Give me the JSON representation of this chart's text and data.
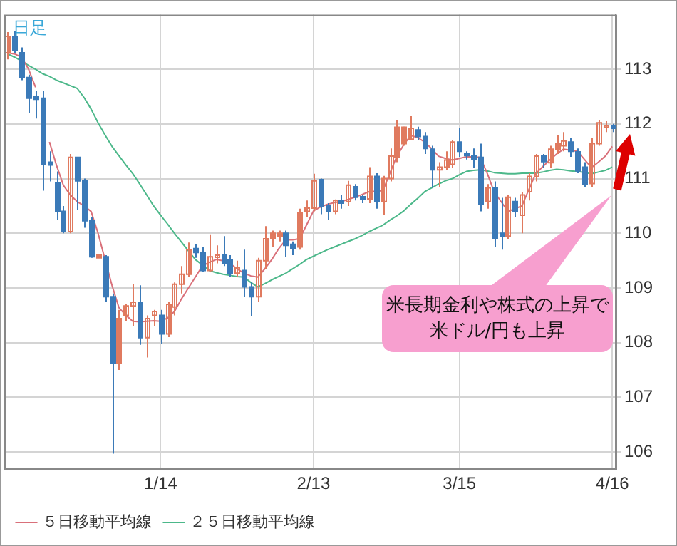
{
  "chart_data": {
    "type": "candlestick",
    "title": "日足",
    "categories": [
      null,
      null,
      null,
      null,
      null,
      null,
      null,
      null,
      null,
      null,
      null,
      null,
      null,
      null,
      null,
      null,
      null,
      null,
      null,
      null,
      null,
      null,
      "1/14",
      null,
      null,
      null,
      null,
      null,
      null,
      null,
      null,
      null,
      null,
      null,
      null,
      null,
      null,
      null,
      null,
      null,
      null,
      null,
      null,
      null,
      "2/13",
      null,
      null,
      null,
      null,
      null,
      null,
      null,
      null,
      null,
      null,
      null,
      null,
      null,
      null,
      null,
      null,
      null,
      null,
      null,
      null,
      "3/15",
      null,
      null,
      null,
      null,
      null,
      null,
      null,
      null,
      null,
      null,
      null,
      null,
      null,
      null,
      null,
      null,
      null,
      null,
      null,
      null,
      null,
      "4/16"
    ],
    "ohlc": [
      [
        113.3,
        113.68,
        113.18,
        113.6
      ],
      [
        113.6,
        113.7,
        113.3,
        113.35
      ],
      [
        113.3,
        113.4,
        112.8,
        112.85
      ],
      [
        112.85,
        112.9,
        112.2,
        112.47
      ],
      [
        112.5,
        112.6,
        112.1,
        112.45
      ],
      [
        112.47,
        112.6,
        110.78,
        111.26
      ],
      [
        111.3,
        111.5,
        110.95,
        111.25
      ],
      [
        110.93,
        111.13,
        110.25,
        110.4
      ],
      [
        110.4,
        110.5,
        110.0,
        110.03
      ],
      [
        110.03,
        111.45,
        110.0,
        111.39
      ],
      [
        111.39,
        111.4,
        110.43,
        110.96
      ],
      [
        110.96,
        111.0,
        110.1,
        110.23
      ],
      [
        110.23,
        110.3,
        109.55,
        109.57
      ],
      [
        109.55,
        109.6,
        109.55,
        109.6
      ],
      [
        109.57,
        109.6,
        108.75,
        108.84
      ],
      [
        108.84,
        108.9,
        105.97,
        107.63
      ],
      [
        107.63,
        108.6,
        107.5,
        108.44
      ],
      [
        108.5,
        108.7,
        108.4,
        108.67
      ],
      [
        108.67,
        109.07,
        108.3,
        108.74
      ],
      [
        108.74,
        109.05,
        107.96,
        108.09
      ],
      [
        108.09,
        108.5,
        107.73,
        108.44
      ],
      [
        108.5,
        108.6,
        108.3,
        108.57
      ],
      [
        108.5,
        108.6,
        107.98,
        108.16
      ],
      [
        108.16,
        108.75,
        108.1,
        108.7
      ],
      [
        108.65,
        109.1,
        108.5,
        109.07
      ],
      [
        109.07,
        109.4,
        108.9,
        109.25
      ],
      [
        109.25,
        109.83,
        109.2,
        109.7
      ],
      [
        109.72,
        109.8,
        109.55,
        109.65
      ],
      [
        109.65,
        109.75,
        109.3,
        109.32
      ],
      [
        109.32,
        109.98,
        109.3,
        109.57
      ],
      [
        109.56,
        109.78,
        109.45,
        109.6
      ],
      [
        109.6,
        109.95,
        109.4,
        109.45
      ],
      [
        109.52,
        109.6,
        109.2,
        109.27
      ],
      [
        109.27,
        109.5,
        109.2,
        109.37
      ],
      [
        109.32,
        109.7,
        108.84,
        109.02
      ],
      [
        109.02,
        109.1,
        108.49,
        108.84
      ],
      [
        108.84,
        109.55,
        108.74,
        109.5
      ],
      [
        109.5,
        110.13,
        109.35,
        109.9
      ],
      [
        109.9,
        110.05,
        109.75,
        110.0
      ],
      [
        109.95,
        110.05,
        109.85,
        110.0
      ],
      [
        110.0,
        110.05,
        109.57,
        109.78
      ],
      [
        109.8,
        109.85,
        109.6,
        109.72
      ],
      [
        109.75,
        110.45,
        109.7,
        110.38
      ],
      [
        110.4,
        110.6,
        110.3,
        110.46
      ],
      [
        110.46,
        111.09,
        110.4,
        110.96
      ],
      [
        110.98,
        111.0,
        110.35,
        110.5
      ],
      [
        110.5,
        110.55,
        110.25,
        110.4
      ],
      [
        110.4,
        110.62,
        110.35,
        110.6
      ],
      [
        110.6,
        110.7,
        110.45,
        110.55
      ],
      [
        110.58,
        110.96,
        110.5,
        110.88
      ],
      [
        110.85,
        110.9,
        110.6,
        110.66
      ],
      [
        110.67,
        110.7,
        110.55,
        110.62
      ],
      [
        110.63,
        111.21,
        110.55,
        111.04
      ],
      [
        111.04,
        111.1,
        110.45,
        110.58
      ],
      [
        110.58,
        111.05,
        110.33,
        111.0
      ],
      [
        111.0,
        111.55,
        110.95,
        111.41
      ],
      [
        111.39,
        112.07,
        111.3,
        111.94
      ],
      [
        111.64,
        111.95,
        111.6,
        111.94
      ],
      [
        111.72,
        112.14,
        111.7,
        111.92
      ],
      [
        111.89,
        111.95,
        111.7,
        111.77
      ],
      [
        111.77,
        111.85,
        111.45,
        111.55
      ],
      [
        111.54,
        111.6,
        110.83,
        111.16
      ],
      [
        111.16,
        111.3,
        110.85,
        111.21
      ],
      [
        111.21,
        111.5,
        111.15,
        111.34
      ],
      [
        111.26,
        111.7,
        111.2,
        111.67
      ],
      [
        111.67,
        111.92,
        111.4,
        111.5
      ],
      [
        111.45,
        111.5,
        111.35,
        111.42
      ],
      [
        111.42,
        111.55,
        111.2,
        111.35
      ],
      [
        111.39,
        111.64,
        110.4,
        110.53
      ],
      [
        110.58,
        110.9,
        110.45,
        110.83
      ],
      [
        110.83,
        110.95,
        109.75,
        109.9
      ],
      [
        110.0,
        110.65,
        109.7,
        109.95
      ],
      [
        109.95,
        110.7,
        109.9,
        110.66
      ],
      [
        110.58,
        110.65,
        110.3,
        110.4
      ],
      [
        110.33,
        110.75,
        110.0,
        110.7
      ],
      [
        110.76,
        111.1,
        110.6,
        111.04
      ],
      [
        111.04,
        111.45,
        110.95,
        111.41
      ],
      [
        111.41,
        111.45,
        111.2,
        111.31
      ],
      [
        111.29,
        111.6,
        111.2,
        111.54
      ],
      [
        111.54,
        111.8,
        111.45,
        111.64
      ],
      [
        111.6,
        111.85,
        111.5,
        111.69
      ],
      [
        111.67,
        111.75,
        111.4,
        111.5
      ],
      [
        111.49,
        111.55,
        111.1,
        111.14
      ],
      [
        111.21,
        111.3,
        110.85,
        110.9
      ],
      [
        110.91,
        111.75,
        110.85,
        111.64
      ],
      [
        111.64,
        112.07,
        111.6,
        112.02
      ],
      [
        111.94,
        112.05,
        111.85,
        111.97
      ],
      [
        111.97,
        112.0,
        111.85,
        111.92
      ]
    ],
    "colors": [
      "#e07a5f",
      "#3b7ab8",
      "#3b7ab8",
      "#3b7ab8",
      "#3b7ab8",
      "#3b7ab8",
      "#3b7ab8",
      "#3b7ab8",
      "#3b7ab8",
      "#e07a5f",
      "#3b7ab8",
      "#3b7ab8",
      "#3b7ab8",
      "#e07a5f",
      "#3b7ab8",
      "#3b7ab8",
      "#e07a5f",
      "#e07a5f",
      "#e07a5f",
      "#3b7ab8",
      "#e07a5f",
      "#e07a5f",
      "#3b7ab8",
      "#e07a5f",
      "#e07a5f",
      "#e07a5f",
      "#e07a5f",
      "#3b7ab8",
      "#3b7ab8",
      "#e07a5f",
      "#e07a5f",
      "#3b7ab8",
      "#3b7ab8",
      "#e07a5f",
      "#3b7ab8",
      "#3b7ab8",
      "#e07a5f",
      "#e07a5f",
      "#e07a5f",
      "#e07a5f",
      "#3b7ab8",
      "#3b7ab8",
      "#e07a5f",
      "#e07a5f",
      "#e07a5f",
      "#3b7ab8",
      "#3b7ab8",
      "#e07a5f",
      "#3b7ab8",
      "#e07a5f",
      "#3b7ab8",
      "#3b7ab8",
      "#e07a5f",
      "#3b7ab8",
      "#e07a5f",
      "#e07a5f",
      "#e07a5f",
      "#e07a5f",
      "#e07a5f",
      "#3b7ab8",
      "#3b7ab8",
      "#3b7ab8",
      "#e07a5f",
      "#e07a5f",
      "#e07a5f",
      "#3b7ab8",
      "#3b7ab8",
      "#3b7ab8",
      "#3b7ab8",
      "#e07a5f",
      "#3b7ab8",
      "#3b7ab8",
      "#e07a5f",
      "#3b7ab8",
      "#e07a5f",
      "#e07a5f",
      "#e07a5f",
      "#3b7ab8",
      "#e07a5f",
      "#e07a5f",
      "#e07a5f",
      "#3b7ab8",
      "#3b7ab8",
      "#3b7ab8",
      "#e07a5f",
      "#e07a5f",
      "#e07a5f",
      "#3b7ab8"
    ],
    "series": [
      {
        "type": "line",
        "name": "５日移動平均線",
        "color": "#d9707a",
        "values": [
          113.3,
          113.28,
          113.22,
          113.0,
          112.67,
          null,
          111.67,
          111.25,
          110.88,
          110.7,
          110.58,
          110.5,
          110.4,
          110.0,
          109.52,
          109.05,
          108.64,
          108.5,
          108.39,
          108.38,
          108.39,
          108.4,
          108.39,
          108.45,
          108.57,
          108.8,
          109.0,
          109.2,
          109.4,
          109.47,
          109.52,
          109.5,
          109.45,
          109.35,
          109.27,
          109.22,
          109.2,
          109.35,
          109.52,
          109.72,
          109.88,
          109.88,
          109.9,
          110.15,
          110.41,
          110.48,
          110.53,
          110.56,
          110.58,
          110.62,
          110.66,
          110.71,
          110.76,
          110.77,
          110.78,
          111.1,
          111.41,
          111.62,
          111.79,
          111.75,
          111.67,
          111.55,
          111.41,
          111.37,
          111.34,
          111.37,
          111.4,
          111.4,
          111.39,
          111.1,
          110.76,
          110.58,
          110.4,
          110.45,
          110.5,
          110.8,
          111.09,
          111.22,
          111.34,
          111.45,
          111.54,
          111.52,
          111.5,
          111.35,
          111.2,
          111.3,
          111.41,
          111.59
        ]
      },
      {
        "type": "line",
        "name": "２５日移動平均線",
        "color": "#4cb88a",
        "values": [
          113.28,
          113.22,
          113.15,
          113.07,
          113.0,
          112.92,
          112.87,
          112.8,
          112.75,
          112.7,
          112.65,
          112.48,
          112.27,
          112.02,
          111.8,
          111.59,
          111.42,
          111.25,
          111.09,
          110.9,
          110.7,
          110.5,
          110.33,
          110.17,
          110.0,
          109.84,
          109.68,
          109.52,
          109.42,
          109.32,
          109.28,
          109.25,
          109.23,
          109.21,
          109.2,
          109.1,
          109.02,
          109.08,
          109.15,
          109.21,
          109.27,
          109.35,
          109.43,
          109.52,
          109.58,
          109.64,
          109.7,
          109.75,
          109.8,
          109.85,
          109.9,
          109.96,
          110.03,
          110.09,
          110.15,
          110.24,
          110.32,
          110.41,
          110.53,
          110.64,
          110.76,
          110.83,
          110.9,
          110.96,
          111.0,
          111.07,
          111.13,
          111.15,
          111.16,
          111.14,
          111.11,
          111.1,
          111.09,
          111.09,
          111.1,
          111.1,
          111.1,
          111.12,
          111.15,
          111.17,
          111.16,
          111.14,
          111.13,
          111.11,
          111.09,
          111.12,
          111.15,
          111.21
        ]
      }
    ],
    "ylim": [
      105.7,
      114.0
    ],
    "yticks": [
      106,
      107,
      108,
      109,
      110,
      111,
      112,
      113
    ],
    "grid": true,
    "legend": "bottom",
    "marker": "none",
    "annotations": [
      "米長期金利や株式の上昇で米ドル/円も上昇"
    ]
  }
}
